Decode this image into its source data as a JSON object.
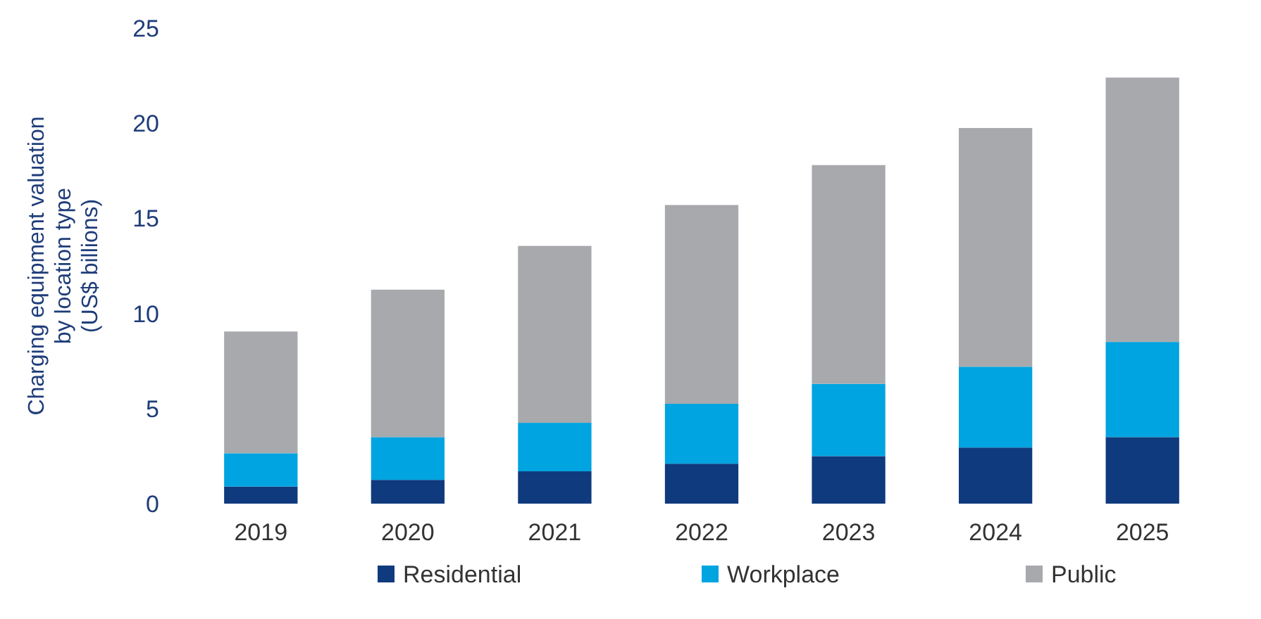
{
  "chart_data": {
    "type": "bar",
    "stacked": true,
    "ylabel": "Charging equipment valuation\nby location type\n(US$ billions)",
    "categories": [
      "2019",
      "2020",
      "2021",
      "2022",
      "2023",
      "2024",
      "2025"
    ],
    "series": [
      {
        "name": "Residential",
        "color": "#0f3a7d",
        "values": [
          0.9,
          1.25,
          1.7,
          2.1,
          2.5,
          2.95,
          3.5
        ]
      },
      {
        "name": "Workplace",
        "color": "#00a4e0",
        "values": [
          1.75,
          2.25,
          2.55,
          3.15,
          3.8,
          4.25,
          5.0
        ]
      },
      {
        "name": "Public",
        "color": "#a8a9ad",
        "values": [
          6.4,
          7.75,
          9.3,
          10.45,
          11.5,
          12.55,
          13.9
        ]
      }
    ],
    "ylim": [
      0,
      25
    ],
    "yticks": [
      0,
      5,
      10,
      15,
      20,
      25
    ],
    "grid": false,
    "legend": "bottom"
  }
}
